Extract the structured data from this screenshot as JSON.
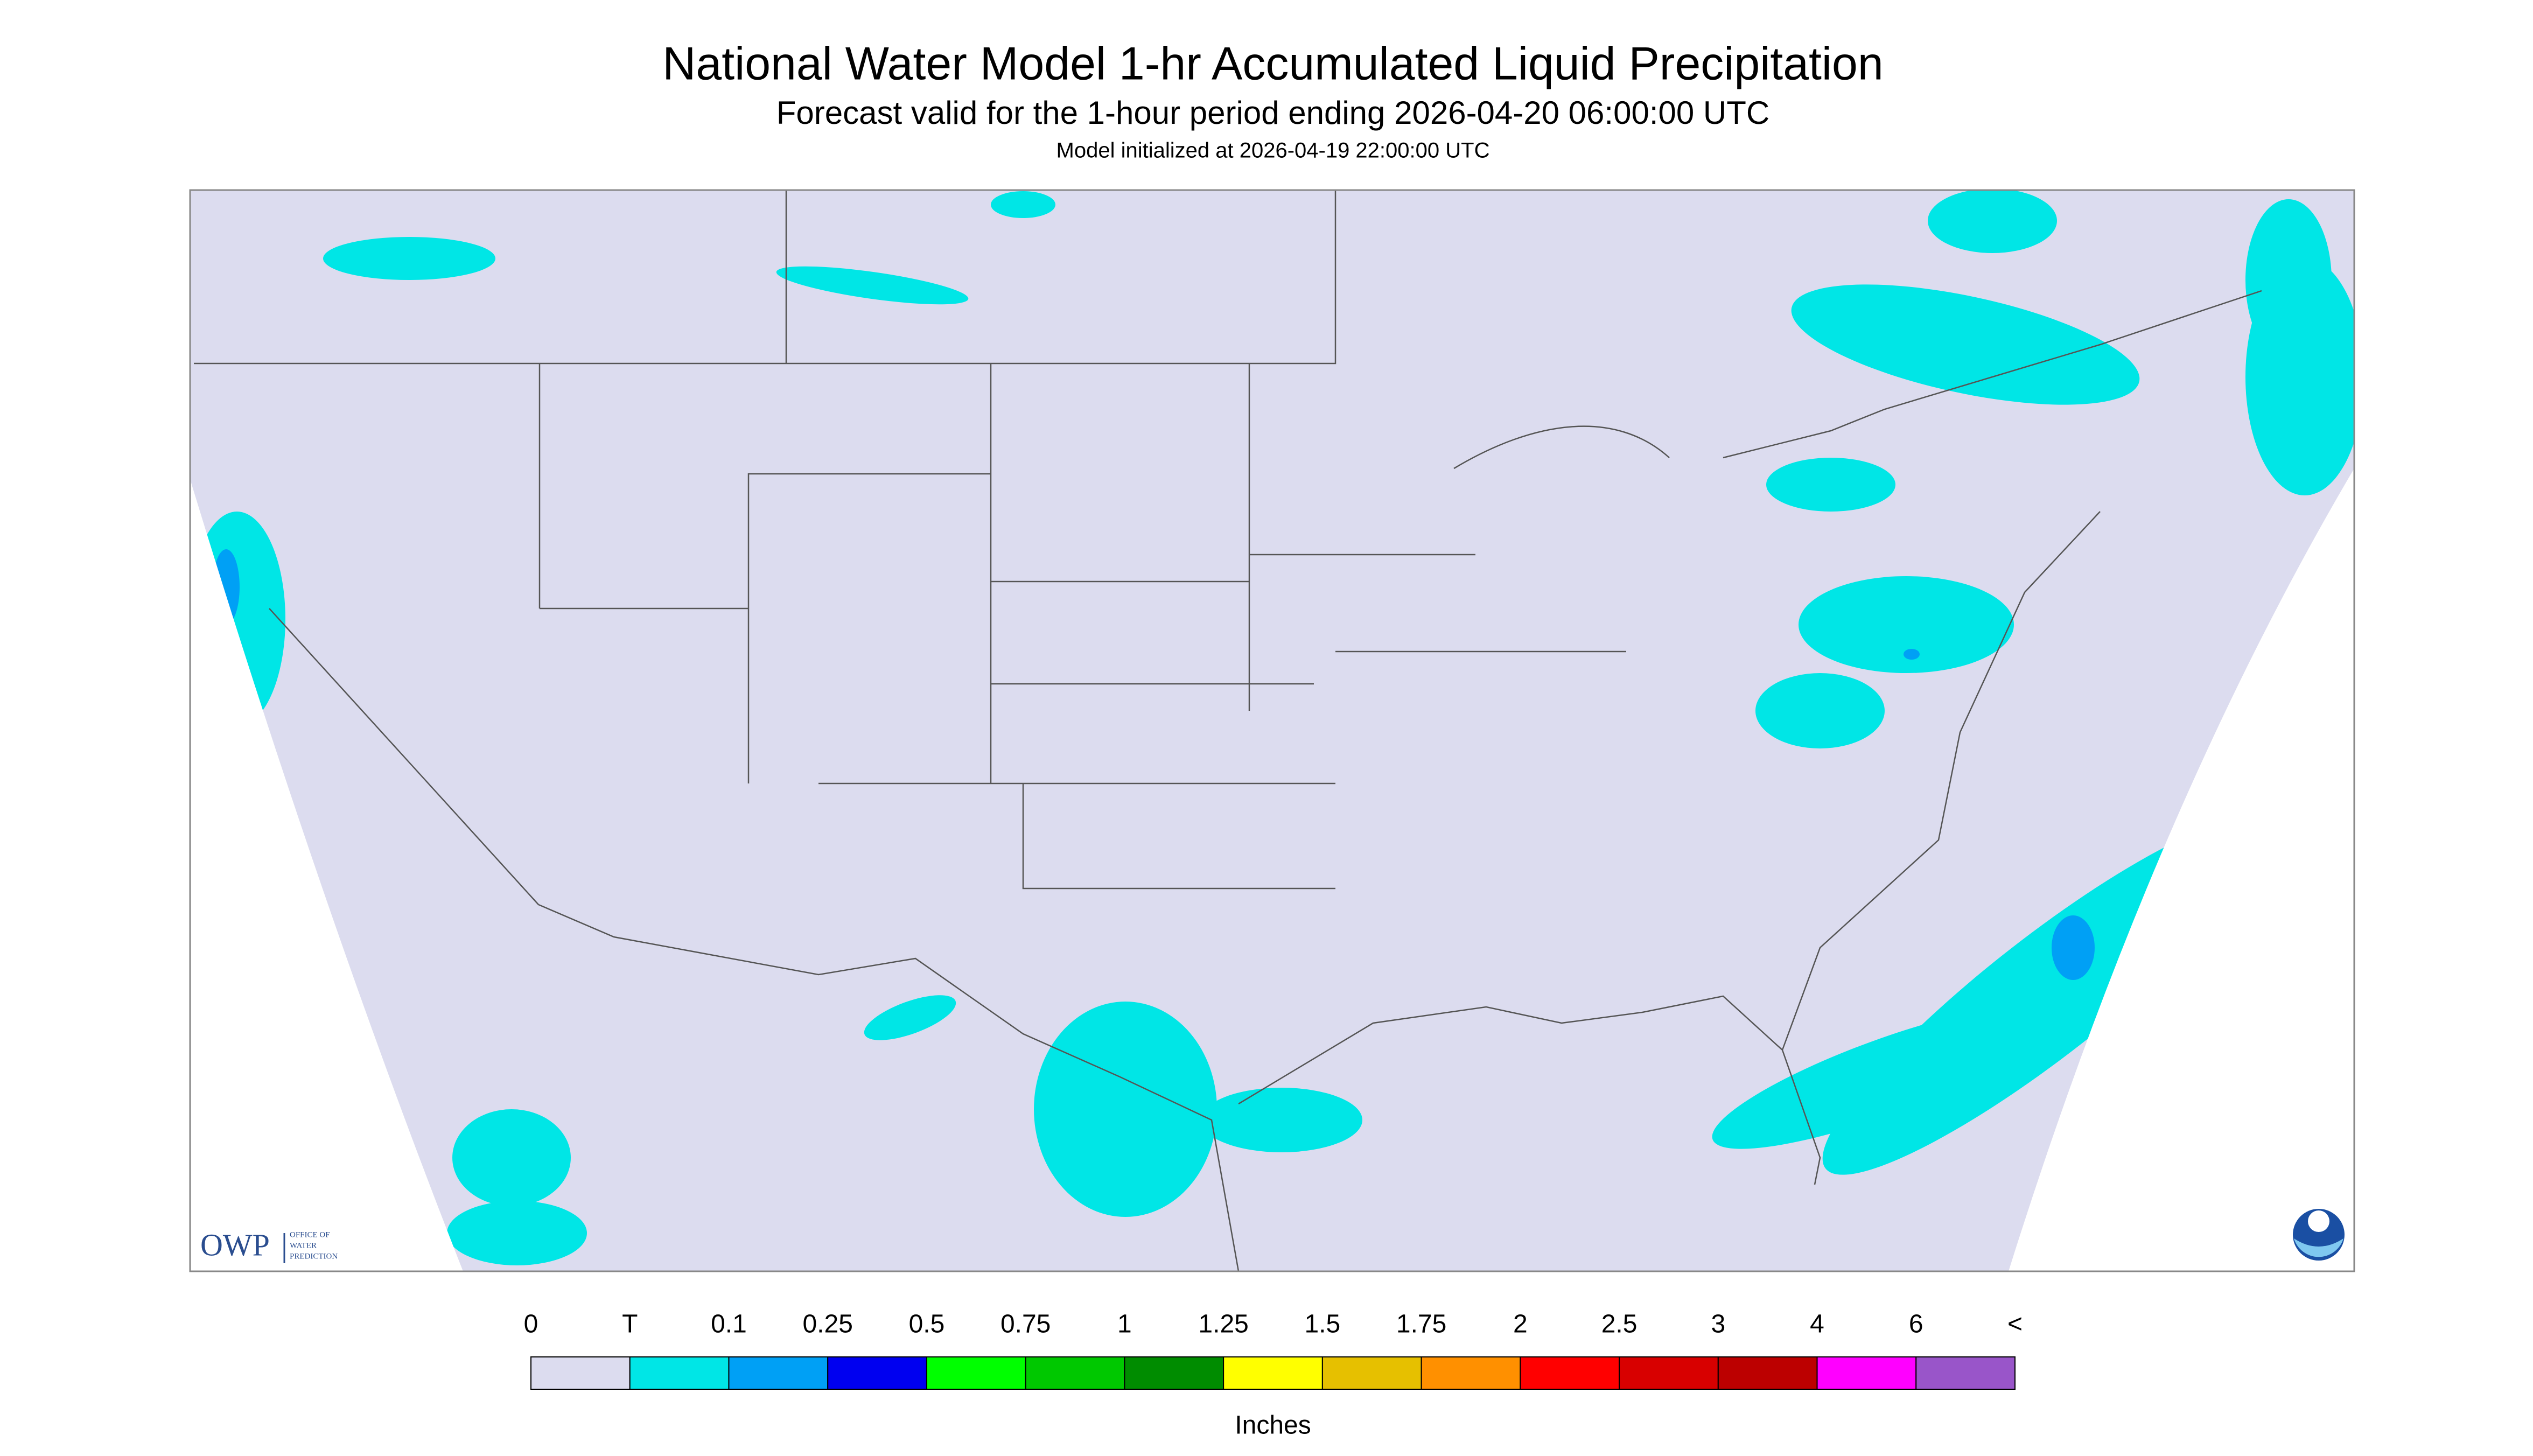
{
  "header": {
    "title": "National Water Model 1-hr Accumulated Liquid Precipitation",
    "subtitle": "Forecast valid for the 1-hour period ending 2026-04-20 06:00:00 UTC",
    "note": "Model initialized at 2026-04-19 22:00:00 UTC"
  },
  "legend": {
    "labels": [
      "0",
      "T",
      "0.1",
      "0.25",
      "0.5",
      "0.75",
      "1",
      "1.25",
      "1.5",
      "1.75",
      "2",
      "2.5",
      "3",
      "4",
      "6",
      "<"
    ],
    "colors": [
      "#dcdcef",
      "#00e6e6",
      "#00a0f5",
      "#0000f0",
      "#00ff00",
      "#00c800",
      "#008c00",
      "#ffff00",
      "#e6c000",
      "#ff9000",
      "#ff0000",
      "#d80000",
      "#bc0000",
      "#ff00ff",
      "#9955c9"
    ],
    "unit": "Inches"
  },
  "logo": {
    "short": "OWP",
    "line1": "OFFICE OF",
    "line2": "WATER",
    "line3": "PREDICTION"
  }
}
